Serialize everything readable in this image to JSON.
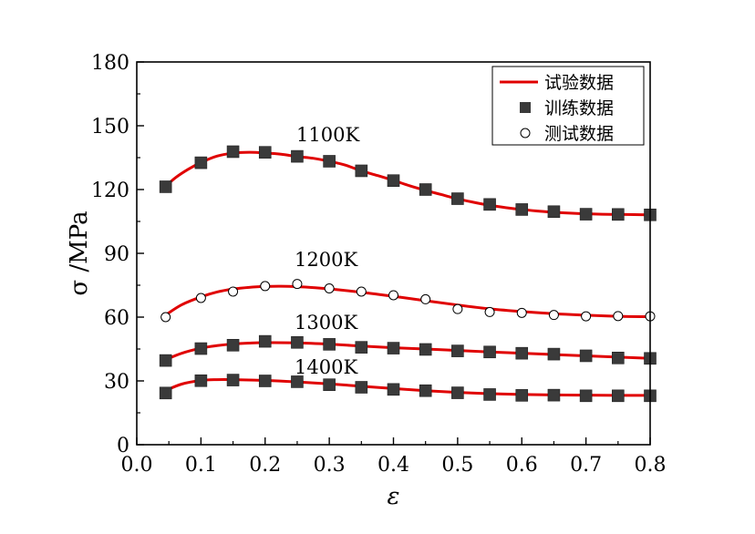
{
  "chart_data": {
    "type": "line",
    "xlabel": "ε",
    "ylabel": "σ /MPa",
    "xlim": [
      0.0,
      0.8
    ],
    "ylim": [
      0,
      180
    ],
    "xticks": [
      0.0,
      0.1,
      0.2,
      0.3,
      0.4,
      0.5,
      0.6,
      0.7,
      0.8
    ],
    "xtick_labels": [
      "0.0",
      "0.1",
      "0.2",
      "0.3",
      "0.4",
      "0.5",
      "0.6",
      "0.7",
      "0.8"
    ],
    "yticks": [
      0,
      30,
      60,
      90,
      120,
      150,
      180
    ],
    "ytick_labels": [
      "0",
      "30",
      "60",
      "90",
      "120",
      "150",
      "180"
    ],
    "grid": false,
    "legend_position": "top-right",
    "legend": [
      {
        "label": "试验数据",
        "marker": "line"
      },
      {
        "label": "训练数据",
        "marker": "square"
      },
      {
        "label": "测试数据",
        "marker": "circle"
      }
    ],
    "colors": {
      "experimental": "#e00000",
      "training": "#3a3a3a",
      "testing": "#ffffff"
    },
    "series": [
      {
        "label": "1100K",
        "curve_x": [
          0.045,
          0.06,
          0.08,
          0.1,
          0.125,
          0.15,
          0.175,
          0.2,
          0.225,
          0.25,
          0.275,
          0.3,
          0.325,
          0.35,
          0.375,
          0.4,
          0.425,
          0.45,
          0.475,
          0.5,
          0.525,
          0.55,
          0.575,
          0.6,
          0.625,
          0.65,
          0.675,
          0.7,
          0.725,
          0.75,
          0.775,
          0.8
        ],
        "curve_y": [
          121.5,
          125.5,
          129.5,
          132.7,
          135.7,
          137.1,
          137.5,
          137.2,
          136.6,
          135.5,
          134.7,
          133.3,
          131.5,
          128.8,
          126.6,
          124.3,
          121.8,
          119.6,
          117.6,
          115.6,
          114.0,
          112.6,
          111.5,
          110.6,
          109.9,
          109.3,
          108.9,
          108.6,
          108.4,
          108.3,
          108.2,
          108.1
        ],
        "marker": "square",
        "points_x": [
          0.045,
          0.1,
          0.15,
          0.2,
          0.25,
          0.3,
          0.35,
          0.4,
          0.45,
          0.5,
          0.55,
          0.6,
          0.65,
          0.7,
          0.75,
          0.8
        ],
        "points_y": [
          121.3,
          132.6,
          137.8,
          137.5,
          135.6,
          133.3,
          128.8,
          124.2,
          120.0,
          115.7,
          113.0,
          110.6,
          109.6,
          108.4,
          108.3,
          108.1
        ]
      },
      {
        "label": "1200K",
        "curve_x": [
          0.045,
          0.07,
          0.1,
          0.125,
          0.15,
          0.175,
          0.2,
          0.225,
          0.25,
          0.275,
          0.3,
          0.35,
          0.4,
          0.45,
          0.5,
          0.55,
          0.6,
          0.65,
          0.7,
          0.75,
          0.8
        ],
        "curve_y": [
          61.0,
          65.8,
          69.5,
          71.8,
          73.2,
          74.0,
          74.4,
          74.5,
          74.3,
          73.9,
          73.3,
          71.7,
          69.8,
          67.7,
          65.7,
          63.9,
          62.6,
          61.6,
          60.9,
          60.4,
          60.2
        ],
        "marker": "circle",
        "points_x": [
          0.045,
          0.1,
          0.15,
          0.2,
          0.25,
          0.3,
          0.35,
          0.4,
          0.45,
          0.5,
          0.55,
          0.6,
          0.65,
          0.7,
          0.75,
          0.8
        ],
        "points_y": [
          60.0,
          69.0,
          72.0,
          74.6,
          75.6,
          73.5,
          72.0,
          70.3,
          68.4,
          63.8,
          62.4,
          62.0,
          61.0,
          60.4,
          60.5,
          60.4
        ]
      },
      {
        "label": "1300K",
        "curve_x": [
          0.045,
          0.07,
          0.1,
          0.125,
          0.15,
          0.175,
          0.2,
          0.25,
          0.3,
          0.35,
          0.4,
          0.45,
          0.5,
          0.55,
          0.6,
          0.65,
          0.7,
          0.75,
          0.8
        ],
        "curve_y": [
          40.0,
          43.0,
          45.4,
          46.6,
          47.4,
          47.8,
          48.0,
          47.9,
          47.3,
          46.4,
          45.6,
          45.0,
          44.3,
          43.6,
          43.0,
          42.4,
          41.8,
          41.2,
          40.6
        ],
        "marker": "square",
        "points_x": [
          0.045,
          0.1,
          0.15,
          0.2,
          0.25,
          0.3,
          0.35,
          0.4,
          0.45,
          0.5,
          0.55,
          0.6,
          0.65,
          0.7,
          0.75,
          0.8
        ],
        "points_y": [
          39.6,
          45.2,
          46.8,
          48.6,
          48.1,
          47.2,
          45.8,
          45.4,
          44.8,
          44.1,
          43.6,
          43.0,
          42.6,
          41.8,
          40.8,
          40.6
        ]
      },
      {
        "label": "1400K",
        "curve_x": [
          0.045,
          0.07,
          0.1,
          0.125,
          0.15,
          0.2,
          0.25,
          0.3,
          0.35,
          0.4,
          0.45,
          0.5,
          0.55,
          0.6,
          0.65,
          0.7,
          0.75,
          0.8
        ],
        "curve_y": [
          25.5,
          28.5,
          30.2,
          30.6,
          30.6,
          30.2,
          29.5,
          28.6,
          27.5,
          26.4,
          25.4,
          24.6,
          24.0,
          23.6,
          23.4,
          23.3,
          23.2,
          23.2
        ],
        "marker": "square",
        "points_x": [
          0.045,
          0.1,
          0.15,
          0.2,
          0.25,
          0.3,
          0.35,
          0.4,
          0.45,
          0.5,
          0.55,
          0.6,
          0.65,
          0.7,
          0.75,
          0.8
        ],
        "points_y": [
          24.3,
          30.1,
          30.4,
          30.0,
          29.6,
          28.2,
          27.0,
          26.0,
          25.4,
          24.4,
          23.6,
          23.2,
          23.3,
          23.0,
          23.0,
          23.0
        ]
      }
    ]
  }
}
